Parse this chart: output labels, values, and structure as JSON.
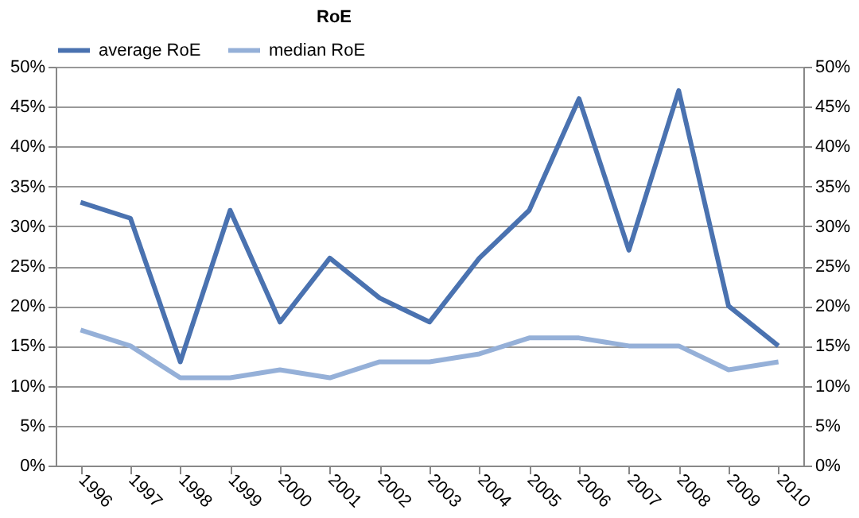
{
  "chart_data": {
    "type": "line",
    "title": "RoE",
    "categories": [
      "1996",
      "1997",
      "1998",
      "1999",
      "2000",
      "2001",
      "2002",
      "2003",
      "2004",
      "2005",
      "2006",
      "2007",
      "2008",
      "2009",
      "2010"
    ],
    "series": [
      {
        "name": "average RoE",
        "color": "#4a72b0",
        "values": [
          33,
          31,
          13,
          32,
          18,
          26,
          21,
          18,
          26,
          32,
          46,
          27,
          47,
          20,
          15
        ]
      },
      {
        "name": "median RoE",
        "color": "#95b0d8",
        "values": [
          17,
          15,
          11,
          11,
          12,
          11,
          13,
          13,
          14,
          16,
          16,
          15,
          15,
          12,
          13
        ]
      }
    ],
    "ylim": [
      0,
      50
    ],
    "yticks": [
      {
        "value": 0,
        "label": "0%"
      },
      {
        "value": 5,
        "label": "5%"
      },
      {
        "value": 10,
        "label": "10%"
      },
      {
        "value": 15,
        "label": "15%"
      },
      {
        "value": 20,
        "label": "20%"
      },
      {
        "value": 25,
        "label": "25%"
      },
      {
        "value": 30,
        "label": "30%"
      },
      {
        "value": 35,
        "label": "35%"
      },
      {
        "value": 40,
        "label": "40%"
      },
      {
        "value": 45,
        "label": "45%"
      },
      {
        "value": 50,
        "label": "50%"
      }
    ],
    "y2lim": [
      0,
      50
    ],
    "y2ticks": [
      {
        "value": 0,
        "label": "0%"
      },
      {
        "value": 5,
        "label": "5%"
      },
      {
        "value": 10,
        "label": "10%"
      },
      {
        "value": 15,
        "label": "15%"
      },
      {
        "value": 20,
        "label": "20%"
      },
      {
        "value": 25,
        "label": "25%"
      },
      {
        "value": 30,
        "label": "30%"
      },
      {
        "value": 35,
        "label": "35%"
      },
      {
        "value": 40,
        "label": "40%"
      },
      {
        "value": 45,
        "label": "45%"
      },
      {
        "value": 50,
        "label": "50%"
      }
    ],
    "grid": "y",
    "legend": "top",
    "marker": "none",
    "line_style": "solid"
  }
}
